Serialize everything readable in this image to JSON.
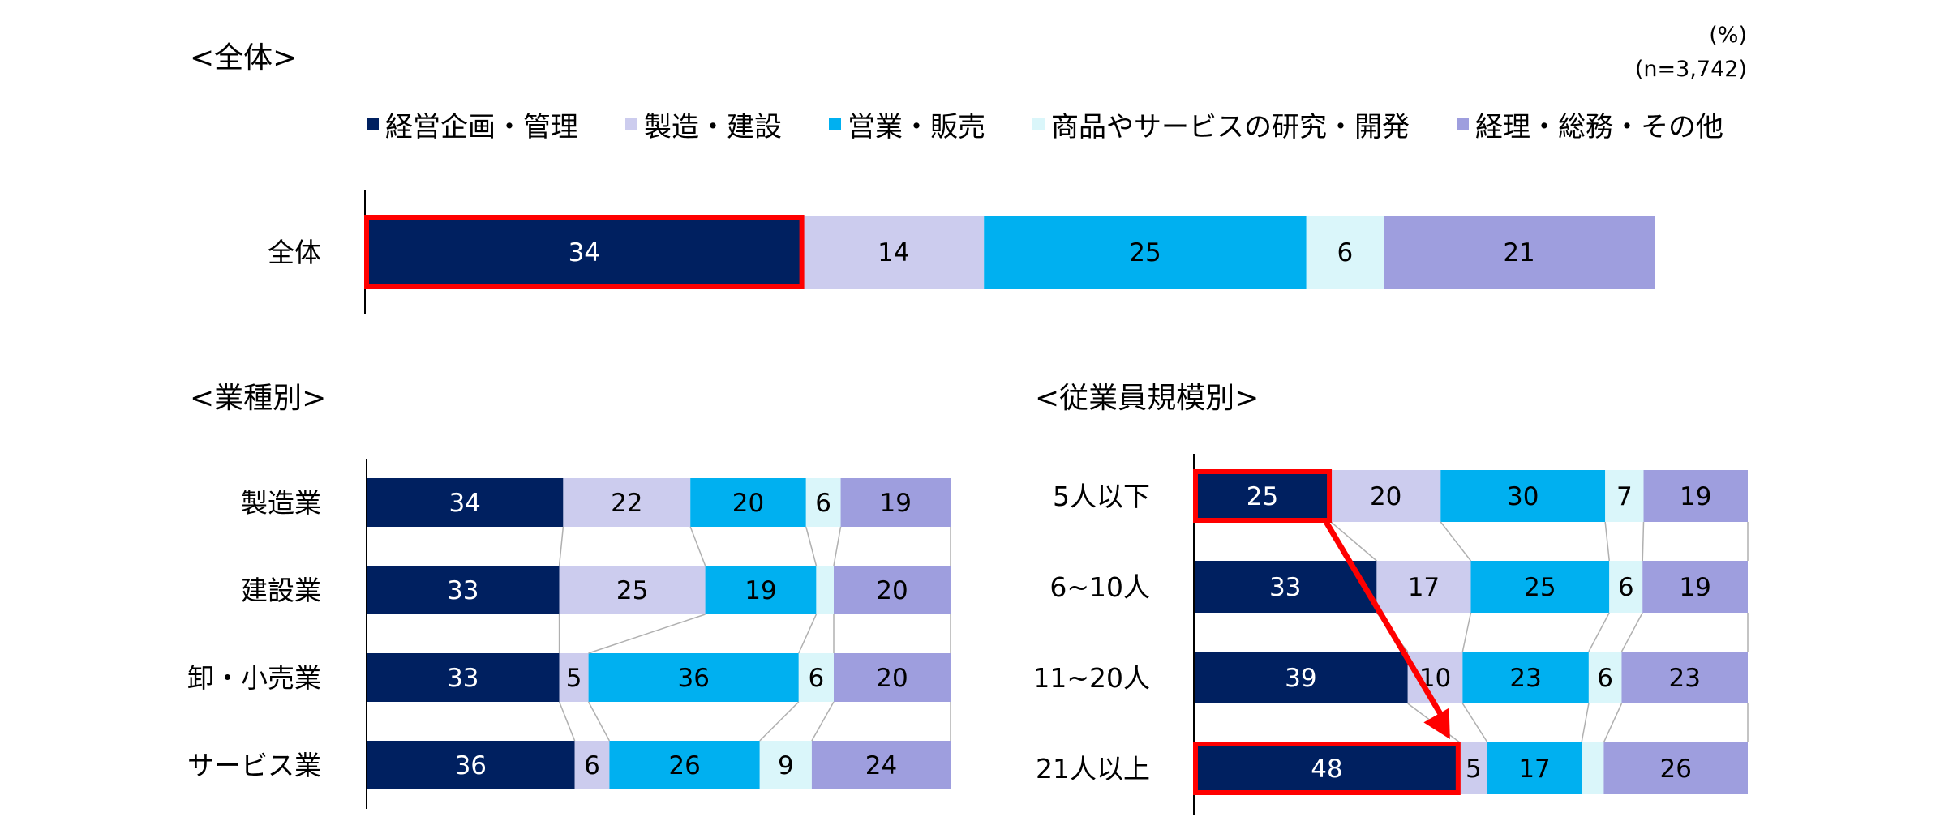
{
  "unit_label": "(%)",
  "sample_size": "(n=3,742)",
  "sections": {
    "overall_title": "<全体>",
    "industry_title": "<業種別>",
    "size_title": "<従業員規模別>"
  },
  "legend": [
    {
      "label": "経営企画・管理",
      "color": "#002060"
    },
    {
      "label": "製造・建設",
      "color": "#CCCCEE"
    },
    {
      "label": "営業・販売",
      "color": "#00B0F0"
    },
    {
      "label": "商品やサービスの研究・開発",
      "color": "#DAF6FA"
    },
    {
      "label": "経理・総務・その他",
      "color": "#9E9EDE"
    }
  ],
  "chart_data": [
    {
      "type": "bar",
      "stacked": true,
      "orientation": "horizontal",
      "title": "<全体>",
      "categories": [
        "全体"
      ],
      "series": [
        {
          "name": "経営企画・管理",
          "values": [
            34
          ]
        },
        {
          "name": "製造・建設",
          "values": [
            14
          ]
        },
        {
          "name": "営業・販売",
          "values": [
            25
          ]
        },
        {
          "name": "商品やサービスの研究・開発",
          "values": [
            6
          ]
        },
        {
          "name": "経理・総務・その他",
          "values": [
            21
          ]
        }
      ],
      "highlight": [
        {
          "category": "全体",
          "series": "経営企画・管理"
        }
      ]
    },
    {
      "type": "bar",
      "stacked": true,
      "orientation": "horizontal",
      "title": "<業種別>",
      "categories": [
        "製造業",
        "建設業",
        "卸・小売業",
        "サービス業"
      ],
      "series": [
        {
          "name": "経営企画・管理",
          "values": [
            34,
            33,
            33,
            36
          ]
        },
        {
          "name": "製造・建設",
          "values": [
            22,
            25,
            5,
            6
          ]
        },
        {
          "name": "営業・販売",
          "values": [
            20,
            19,
            36,
            26
          ]
        },
        {
          "name": "商品やサービスの研究・開発",
          "values": [
            6,
            3,
            6,
            9
          ]
        },
        {
          "name": "経理・総務・その他",
          "values": [
            19,
            20,
            20,
            24
          ]
        }
      ],
      "labels": [
        [
          "34",
          "22",
          "20",
          "6",
          "19"
        ],
        [
          "33",
          "25",
          "19",
          "",
          "20"
        ],
        [
          "33",
          "5",
          "36",
          "6",
          "20"
        ],
        [
          "36",
          "6",
          "26",
          "9",
          "24"
        ]
      ]
    },
    {
      "type": "bar",
      "stacked": true,
      "orientation": "horizontal",
      "title": "<従業員規模別>",
      "categories": [
        "5人以下",
        "6~10人",
        "11~20人",
        "21人以上"
      ],
      "series": [
        {
          "name": "経営企画・管理",
          "values": [
            25,
            33,
            39,
            48
          ]
        },
        {
          "name": "製造・建設",
          "values": [
            20,
            17,
            10,
            5
          ]
        },
        {
          "name": "営業・販売",
          "values": [
            30,
            25,
            23,
            17
          ]
        },
        {
          "name": "商品やサービスの研究・開発",
          "values": [
            7,
            6,
            6,
            4
          ]
        },
        {
          "name": "経理・総務・その他",
          "values": [
            19,
            19,
            23,
            26
          ]
        }
      ],
      "labels": [
        [
          "25",
          "20",
          "30",
          "7",
          "19"
        ],
        [
          "33",
          "17",
          "25",
          "6",
          "19"
        ],
        [
          "39",
          "10",
          "23",
          "6",
          "23"
        ],
        [
          "48",
          "5",
          "17",
          "",
          "26"
        ]
      ],
      "highlight": [
        {
          "category": "5人以下",
          "series": "経営企画・管理"
        },
        {
          "category": "21人以上",
          "series": "経営企画・管理"
        }
      ],
      "arrow": {
        "from": "5人以下",
        "to": "21人以上"
      }
    }
  ]
}
